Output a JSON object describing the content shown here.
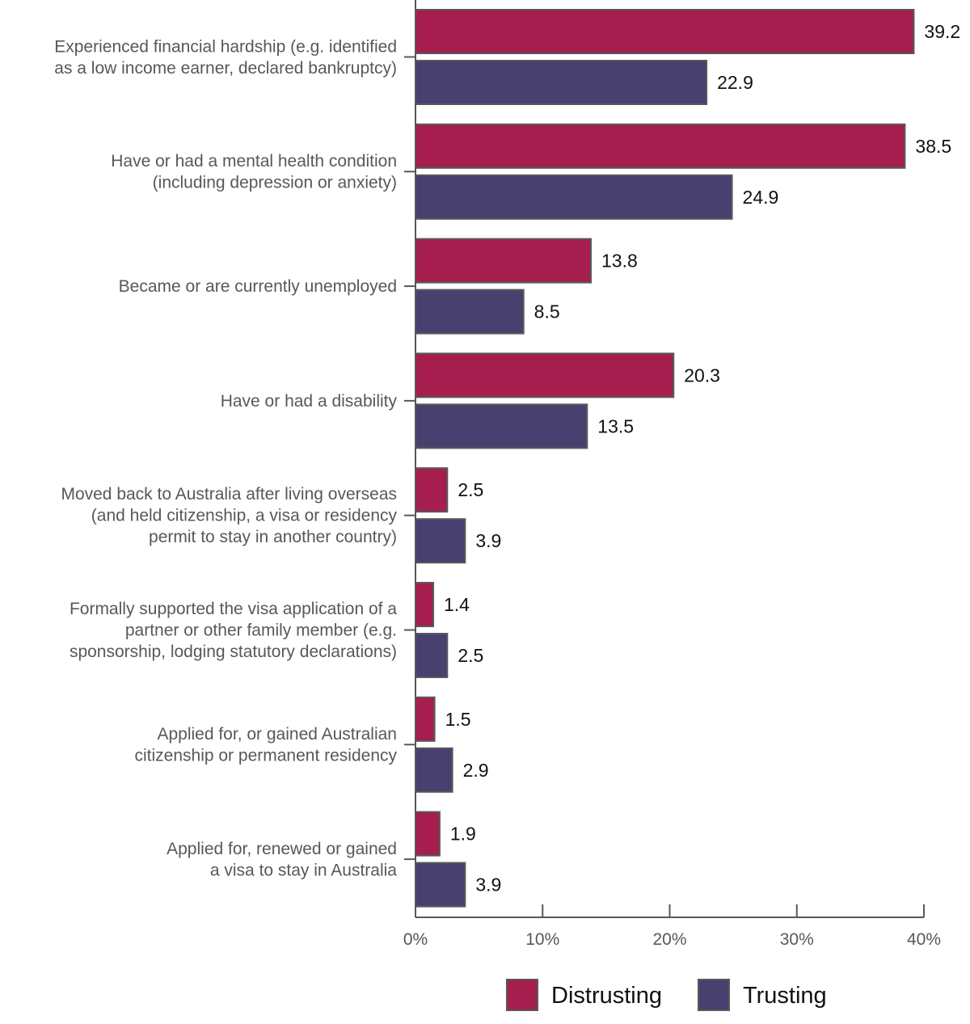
{
  "chart_data": {
    "type": "bar",
    "orientation": "horizontal",
    "categories": [
      [
        "Experienced financial hardship (e.g. identified",
        "as a low income earner, declared bankruptcy)"
      ],
      [
        "Have or had a mental health condition",
        "(including depression or anxiety)"
      ],
      [
        "Became or are currently unemployed"
      ],
      [
        "Have or had a disability"
      ],
      [
        "Moved back to Australia after living overseas",
        "(and held citizenship, a visa or residency",
        "permit to stay in another country)"
      ],
      [
        "Formally supported the visa application of a",
        "partner or other family member (e.g.",
        "sponsorship, lodging statutory declarations)"
      ],
      [
        "Applied for, or gained Australian",
        "citizenship or permanent residency"
      ],
      [
        "Applied for, renewed or gained",
        "a visa to stay in Australia"
      ]
    ],
    "series": [
      {
        "name": "Distrusting",
        "color": "#a51e4e",
        "values": [
          39.2,
          38.5,
          13.8,
          20.3,
          2.5,
          1.4,
          1.5,
          1.9
        ]
      },
      {
        "name": "Trusting",
        "color": "#48406e",
        "values": [
          22.9,
          24.9,
          8.5,
          13.5,
          3.9,
          2.5,
          2.9,
          3.9
        ]
      }
    ],
    "xlim": [
      0,
      40
    ],
    "x_ticks": [
      "0%",
      "10%",
      "20%",
      "30%",
      "40%"
    ],
    "grid": false,
    "legend_position": "bottom"
  }
}
